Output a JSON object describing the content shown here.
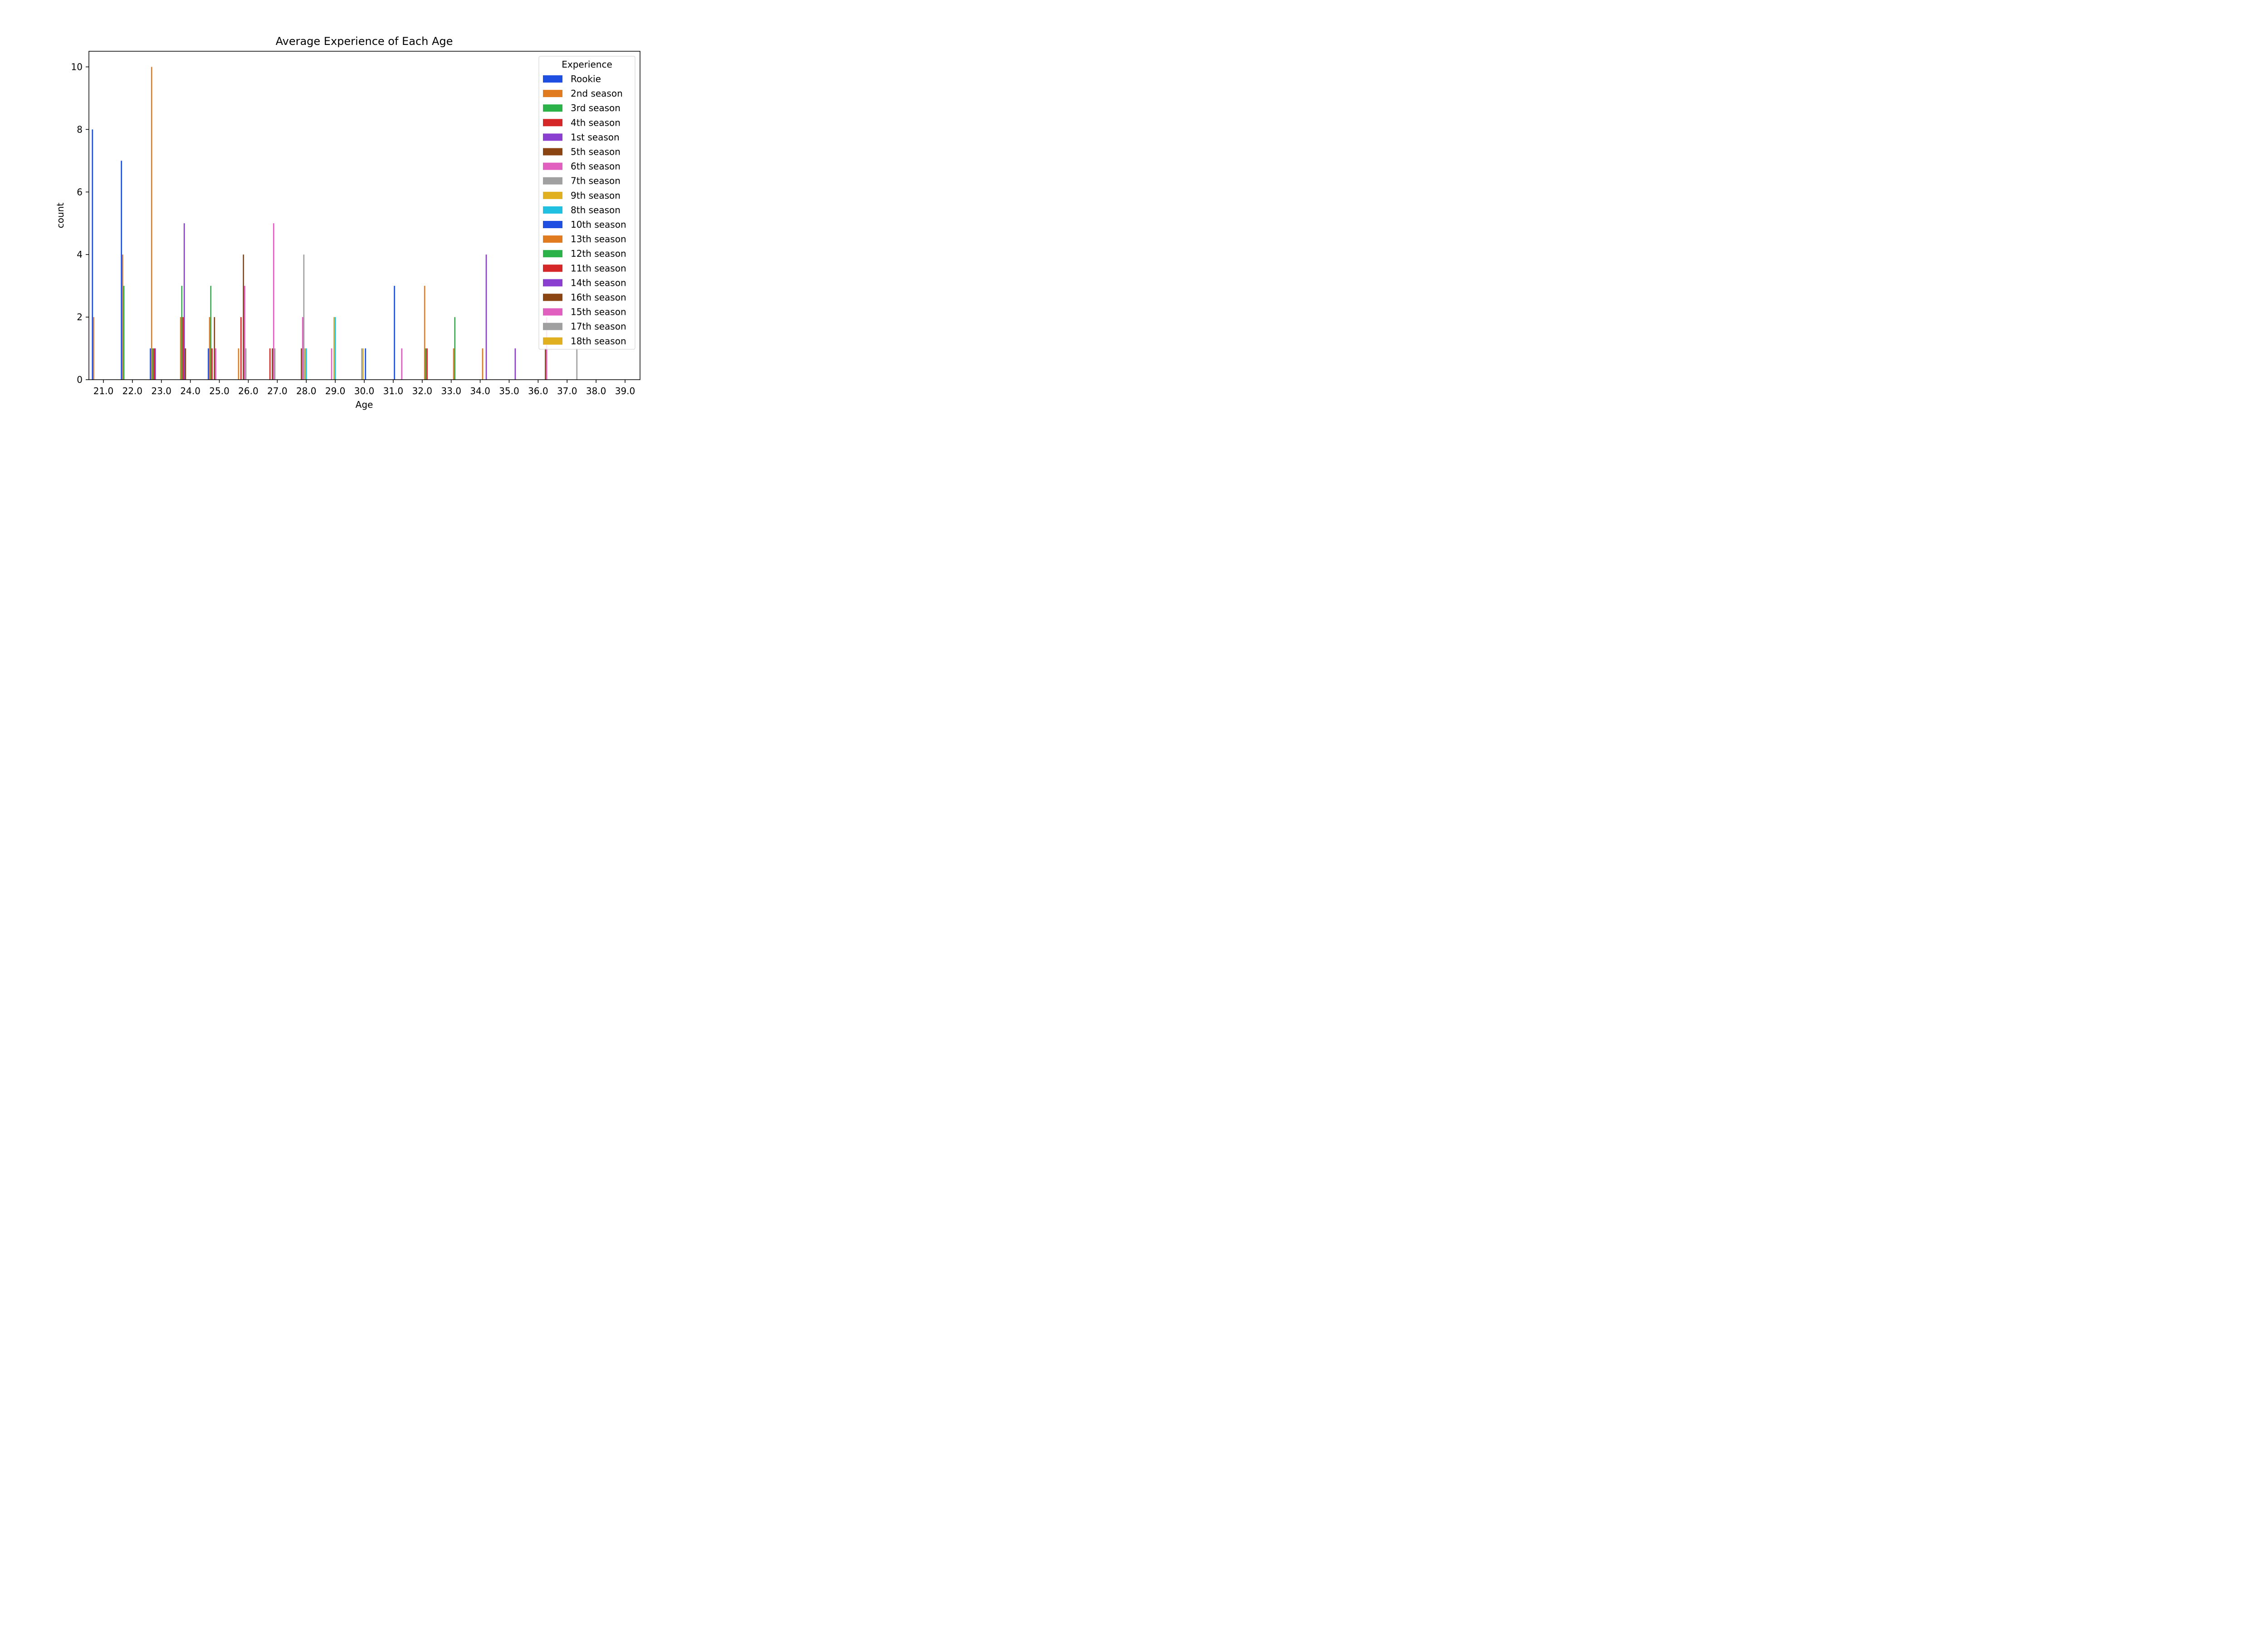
{
  "chart_data": {
    "type": "bar",
    "title": "Average Experience of Each Age",
    "xlabel": "Age",
    "ylabel": "count",
    "ylim": [
      0,
      10.5
    ],
    "yticks": [
      0,
      2,
      4,
      6,
      8,
      10
    ],
    "grid": false,
    "legend_title": "Experience",
    "legend_position": "top-right",
    "categories": [
      "21.0",
      "22.0",
      "23.0",
      "24.0",
      "25.0",
      "26.0",
      "27.0",
      "28.0",
      "29.0",
      "30.0",
      "31.0",
      "32.0",
      "33.0",
      "34.0",
      "35.0",
      "36.0",
      "37.0",
      "38.0",
      "39.0"
    ],
    "series": [
      {
        "name": "Rookie",
        "color": "#1f4fe0",
        "values": [
          8,
          7,
          1,
          0,
          1,
          0,
          0,
          0,
          0,
          0,
          0,
          0,
          0,
          0,
          0,
          0,
          0,
          0,
          0
        ]
      },
      {
        "name": "2nd season",
        "color": "#e07b20",
        "values": [
          2,
          4,
          10,
          2,
          2,
          1,
          0,
          0,
          0,
          0,
          0,
          0,
          0,
          0,
          0,
          0,
          0,
          0,
          0
        ]
      },
      {
        "name": "3rd season",
        "color": "#2bb34a",
        "values": [
          0,
          3,
          1,
          3,
          3,
          0,
          0,
          0,
          0,
          0,
          0,
          0,
          0,
          0,
          0,
          0,
          0,
          0,
          0
        ]
      },
      {
        "name": "4th season",
        "color": "#d62728",
        "values": [
          0,
          0,
          1,
          2,
          1,
          2,
          1,
          0,
          0,
          0,
          0,
          0,
          0,
          0,
          0,
          0,
          0,
          0,
          0
        ]
      },
      {
        "name": "1st season",
        "color": "#8b3fd0",
        "values": [
          0,
          0,
          1,
          5,
          0,
          0,
          0,
          0,
          0,
          0,
          0,
          0,
          0,
          0,
          0,
          0,
          0,
          0,
          0
        ]
      },
      {
        "name": "5th season",
        "color": "#8b4513",
        "values": [
          0,
          0,
          0,
          1,
          2,
          4,
          1,
          1,
          0,
          0,
          0,
          0,
          0,
          0,
          0,
          0,
          0,
          0,
          0
        ]
      },
      {
        "name": "6th season",
        "color": "#e05fbf",
        "values": [
          0,
          0,
          0,
          0,
          1,
          3,
          5,
          2,
          1,
          0,
          0,
          0,
          0,
          0,
          0,
          0,
          0,
          0,
          0
        ]
      },
      {
        "name": "7th season",
        "color": "#a0a0a0",
        "values": [
          0,
          0,
          0,
          0,
          0,
          1,
          1,
          4,
          0,
          1,
          0,
          0,
          0,
          0,
          0,
          0,
          0,
          0,
          0
        ]
      },
      {
        "name": "9th season",
        "color": "#e0b020",
        "values": [
          0,
          0,
          0,
          0,
          0,
          0,
          0,
          1,
          2,
          1,
          0,
          0,
          0,
          0,
          0,
          0,
          0,
          0,
          0
        ]
      },
      {
        "name": "8th season",
        "color": "#20c0e0",
        "values": [
          0,
          0,
          0,
          0,
          0,
          0,
          0,
          1,
          2,
          0,
          0,
          0,
          0,
          0,
          0,
          0,
          0,
          0,
          0
        ]
      },
      {
        "name": "10th season",
        "color": "#1f4fe0",
        "values": [
          0,
          0,
          0,
          0,
          0,
          0,
          0,
          0,
          0,
          1,
          3,
          0,
          0,
          0,
          0,
          0,
          0,
          0,
          0
        ]
      },
      {
        "name": "13th season",
        "color": "#e07b20",
        "values": [
          0,
          0,
          0,
          0,
          0,
          0,
          0,
          0,
          0,
          0,
          0,
          3,
          1,
          1,
          0,
          0,
          0,
          0,
          0
        ]
      },
      {
        "name": "12th season",
        "color": "#2bb34a",
        "values": [
          0,
          0,
          0,
          0,
          0,
          0,
          0,
          0,
          0,
          0,
          0,
          1,
          2,
          0,
          0,
          0,
          0,
          0,
          0
        ]
      },
      {
        "name": "11th season",
        "color": "#d62728",
        "values": [
          0,
          0,
          0,
          0,
          0,
          0,
          0,
          0,
          0,
          0,
          0,
          1,
          0,
          0,
          0,
          0,
          0,
          0,
          0
        ]
      },
      {
        "name": "14th season",
        "color": "#8b3fd0",
        "values": [
          0,
          0,
          0,
          0,
          0,
          0,
          0,
          0,
          0,
          0,
          0,
          0,
          0,
          4,
          1,
          0,
          0,
          0,
          0
        ]
      },
      {
        "name": "16th season",
        "color": "#8b4513",
        "values": [
          0,
          0,
          0,
          0,
          0,
          0,
          0,
          0,
          0,
          0,
          0,
          0,
          0,
          0,
          0,
          1,
          0,
          0,
          0
        ]
      },
      {
        "name": "15th season",
        "color": "#e05fbf",
        "values": [
          0,
          0,
          0,
          0,
          0,
          0,
          0,
          0,
          0,
          0,
          1,
          0,
          0,
          0,
          0,
          2,
          0,
          0,
          0
        ]
      },
      {
        "name": "17th season",
        "color": "#a0a0a0",
        "values": [
          0,
          0,
          0,
          0,
          0,
          0,
          0,
          0,
          0,
          0,
          0,
          0,
          0,
          0,
          0,
          0,
          1,
          0,
          0
        ]
      },
      {
        "name": "18th season",
        "color": "#e0b020",
        "values": [
          0,
          0,
          0,
          0,
          0,
          0,
          0,
          0,
          0,
          0,
          0,
          0,
          0,
          0,
          0,
          0,
          0,
          0,
          0
        ]
      }
    ]
  }
}
